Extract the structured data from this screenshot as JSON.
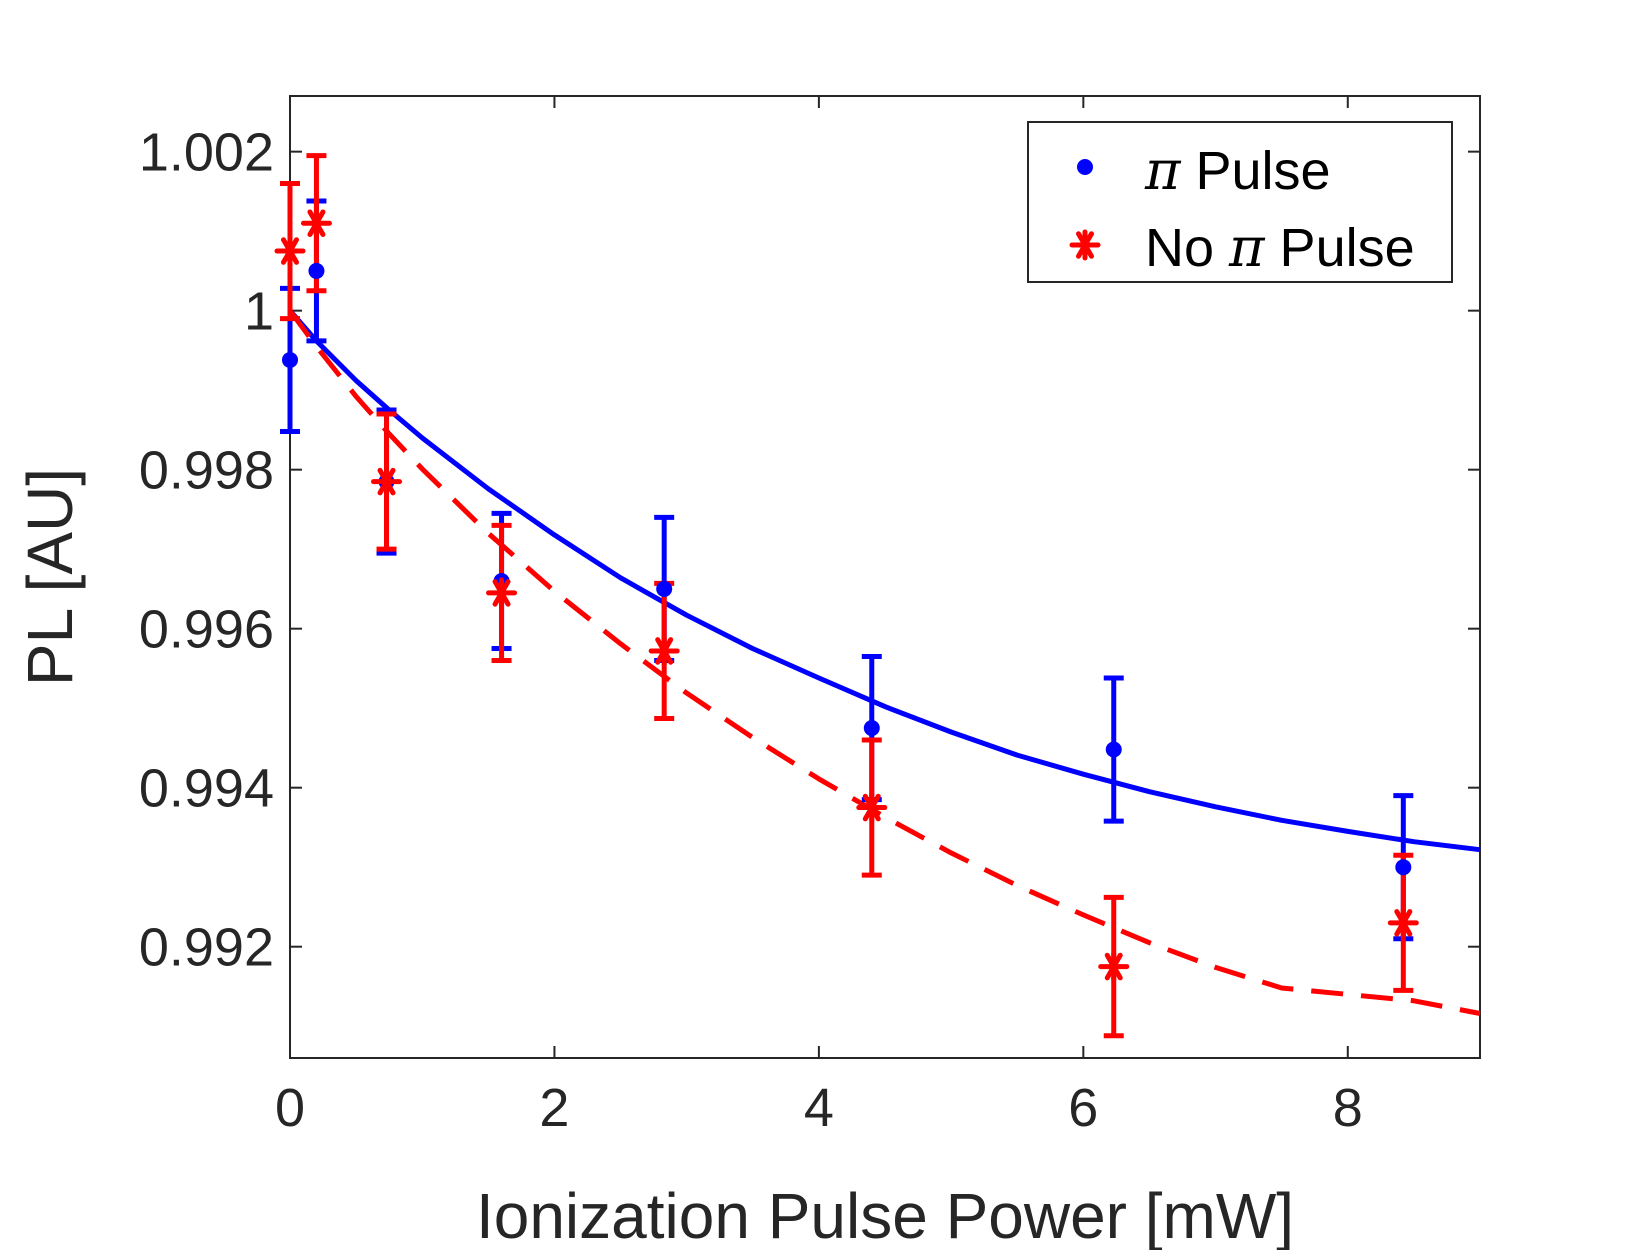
{
  "chart_data": {
    "type": "scatter",
    "xlabel": "Ionization Pulse Power [mW]",
    "ylabel": "PL [AU]",
    "xlim": [
      0,
      9
    ],
    "ylim": [
      0.9906,
      1.0027
    ],
    "xticks": [
      0,
      2,
      4,
      6,
      8
    ],
    "xtick_labels": [
      "0",
      "2",
      "4",
      "6",
      "8"
    ],
    "yticks": [
      0.992,
      0.994,
      0.996,
      0.998,
      1,
      1.002
    ],
    "ytick_labels": [
      "0.992",
      "0.994",
      "0.996",
      "0.998",
      "1",
      "1.002"
    ],
    "legend_position": "top-right",
    "series": [
      {
        "name": "π Pulse",
        "legend_prefix": "",
        "legend_symbol": "π",
        "legend_suffix": " Pulse",
        "color": "#0000ff",
        "marker": "dot",
        "x": [
          0.0,
          0.2,
          0.73,
          1.6,
          2.83,
          4.4,
          6.23,
          8.42
        ],
        "y": [
          0.99938,
          1.0005,
          0.99785,
          0.9966,
          0.9965,
          0.99475,
          0.99448,
          0.993
        ],
        "err": [
          0.0009,
          0.00088,
          0.0009,
          0.00085,
          0.0009,
          0.0009,
          0.0009,
          0.0009
        ],
        "fit": {
          "style": "solid",
          "points": [
            [
              0,
              1.0
            ],
            [
              0.2,
              0.99962
            ],
            [
              0.5,
              0.99912
            ],
            [
              0.75,
              0.99875
            ],
            [
              1,
              0.9984
            ],
            [
              1.5,
              0.99776
            ],
            [
              2,
              0.99718
            ],
            [
              2.5,
              0.99664
            ],
            [
              3,
              0.99617
            ],
            [
              3.5,
              0.99575
            ],
            [
              4,
              0.99538
            ],
            [
              4.5,
              0.99502
            ],
            [
              5,
              0.9947
            ],
            [
              5.5,
              0.99441
            ],
            [
              6,
              0.99417
            ],
            [
              6.5,
              0.99395
            ],
            [
              7,
              0.99376
            ],
            [
              7.5,
              0.99359
            ],
            [
              8,
              0.99345
            ],
            [
              8.5,
              0.99332
            ],
            [
              9,
              0.99322
            ]
          ]
        }
      },
      {
        "name": "No π Pulse",
        "legend_prefix": "No ",
        "legend_symbol": "π",
        "legend_suffix": " Pulse",
        "color": "#ff0000",
        "marker": "asterisk",
        "x": [
          0.0,
          0.2,
          0.73,
          1.6,
          2.83,
          4.4,
          6.23,
          8.42
        ],
        "y": [
          1.00075,
          1.0011,
          0.99785,
          0.99645,
          0.99572,
          0.99375,
          0.99175,
          0.9923
        ],
        "err": [
          0.00085,
          0.00085,
          0.00085,
          0.00085,
          0.00085,
          0.00085,
          0.00087,
          0.00085
        ],
        "fit": {
          "style": "dashed",
          "points": [
            [
              0,
              1.0
            ],
            [
              0.2,
              0.99955
            ],
            [
              0.5,
              0.99892
            ],
            [
              0.75,
              0.99845
            ],
            [
              1,
              0.99801
            ],
            [
              1.5,
              0.9972
            ],
            [
              2,
              0.99647
            ],
            [
              2.5,
              0.99581
            ],
            [
              3,
              0.99519
            ],
            [
              3.5,
              0.99463
            ],
            [
              4,
              0.99411
            ],
            [
              4.5,
              0.99363
            ],
            [
              5,
              0.99318
            ],
            [
              5.5,
              0.99277
            ],
            [
              6,
              0.9924
            ],
            [
              6.5,
              0.99205
            ],
            [
              7,
              0.99174
            ],
            [
              7.5,
              0.99148
            ],
            [
              8,
              0.9914
            ],
            [
              8.5,
              0.99132
            ],
            [
              9,
              0.99116
            ]
          ]
        }
      }
    ]
  }
}
